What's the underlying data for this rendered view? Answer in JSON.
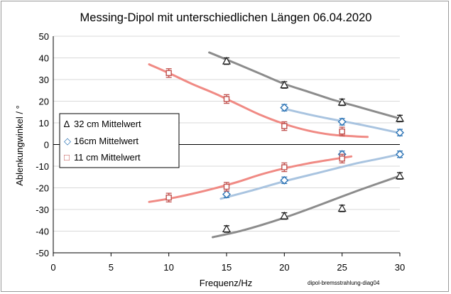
{
  "chart_data": {
    "type": "scatter",
    "title": "Messing-Dipol mit unterschiedlichen Längen 06.04.2020",
    "xlabel": "Frequenz/Hz",
    "ylabel": "Ablenkungwinkel / °",
    "xlim": [
      0,
      30
    ],
    "ylim": [
      -50,
      50
    ],
    "xticks": [
      0,
      5,
      10,
      15,
      20,
      25,
      30
    ],
    "yticks": [
      -50,
      -40,
      -30,
      -20,
      -10,
      0,
      10,
      20,
      30,
      40,
      50
    ],
    "xtick_labels": [
      "0",
      "5",
      "10",
      "15",
      "20",
      "25",
      "30"
    ],
    "ytick_labels": [
      "-50",
      "-40",
      "-30",
      "-20",
      "-10",
      "0",
      "10",
      "20",
      "30",
      "40",
      "50"
    ],
    "grid": "horizontal",
    "legend_position": "left",
    "footnote": "dipol-bremsstrahlung-diag04",
    "series": [
      {
        "name": "32 cm Mittelwert",
        "marker": "triangle",
        "color": "#1a1a1a",
        "legend_glyph": "∆",
        "error": 1.5,
        "points": [
          [
            15,
            38.5
          ],
          [
            20,
            27.5
          ],
          [
            25,
            19.5
          ],
          [
            30,
            12
          ],
          [
            30,
            -14.5
          ],
          [
            25,
            -29.5
          ],
          [
            20,
            -33
          ],
          [
            15,
            -39
          ]
        ],
        "fits": [
          {
            "color": "#8c8c8c",
            "points": [
              [
                13.5,
                42.5
              ],
              [
                16,
                37
              ],
              [
                18,
                32.5
              ],
              [
                20,
                28
              ],
              [
                22,
                24.5
              ],
              [
                24,
                21
              ],
              [
                26,
                18
              ],
              [
                28,
                15
              ],
              [
                30,
                12
              ]
            ]
          },
          {
            "color": "#8c8c8c",
            "points": [
              [
                13.8,
                -42.8
              ],
              [
                16,
                -40.2
              ],
              [
                18,
                -37.2
              ],
              [
                20,
                -33.8
              ],
              [
                22,
                -30
              ],
              [
                24,
                -26
              ],
              [
                26,
                -22
              ],
              [
                28,
                -18.2
              ],
              [
                30,
                -14.5
              ]
            ]
          }
        ]
      },
      {
        "name": "16cm Mittelwert",
        "marker": "diamond",
        "color": "#2e75b6",
        "legend_glyph": "◇",
        "error": 1.5,
        "points": [
          [
            20,
            17
          ],
          [
            25,
            10.5
          ],
          [
            30,
            5.5
          ],
          [
            30,
            -4.5
          ],
          [
            25,
            -4.5
          ],
          [
            20,
            -16.5
          ],
          [
            15,
            -23
          ]
        ],
        "fits": [
          {
            "color": "#a9c4e0",
            "points": [
              [
                20,
                16.5
              ],
              [
                22,
                14
              ],
              [
                24,
                11.8
              ],
              [
                26,
                9.8
              ],
              [
                28,
                7.6
              ],
              [
                30,
                5.3
              ]
            ]
          },
          {
            "color": "#a9c4e0",
            "points": [
              [
                14.5,
                -25
              ],
              [
                17,
                -21.5
              ],
              [
                20,
                -17
              ],
              [
                23,
                -13
              ],
              [
                26,
                -9
              ],
              [
                28,
                -6.8
              ],
              [
                30,
                -4.5
              ]
            ]
          }
        ]
      },
      {
        "name": "11 cm Mittelwert",
        "marker": "square",
        "color": "#c0504d",
        "legend_glyph": "□",
        "error": 2,
        "points": [
          [
            10,
            33
          ],
          [
            15,
            21
          ],
          [
            20,
            8.5
          ],
          [
            25,
            6
          ],
          [
            25,
            -6.5
          ],
          [
            20,
            -10.5
          ],
          [
            15,
            -19.5
          ],
          [
            10,
            -24.5
          ]
        ],
        "fits": [
          {
            "color": "#f08a84",
            "points": [
              [
                8.3,
                37
              ],
              [
                10,
                33
              ],
              [
                12,
                28
              ],
              [
                14,
                23.5
              ],
              [
                16,
                18.5
              ],
              [
                18,
                13.5
              ],
              [
                20,
                9.5
              ],
              [
                22,
                6.5
              ],
              [
                24,
                4.6
              ],
              [
                26,
                3.8
              ],
              [
                27.2,
                3.5
              ]
            ]
          },
          {
            "color": "#f08a84",
            "points": [
              [
                8.3,
                -26.5
              ],
              [
                10,
                -25
              ],
              [
                12,
                -22.8
              ],
              [
                14,
                -20.2
              ],
              [
                16,
                -17.2
              ],
              [
                18,
                -13.8
              ],
              [
                20,
                -11
              ],
              [
                22,
                -8.8
              ],
              [
                24,
                -7
              ],
              [
                25.8,
                -5.5
              ]
            ]
          }
        ]
      }
    ]
  }
}
